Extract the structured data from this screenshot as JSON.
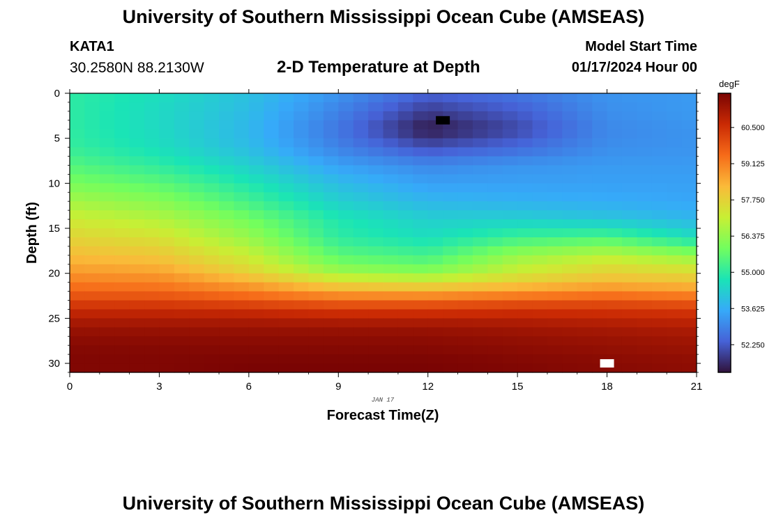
{
  "page": {
    "title": "University of Southern Mississippi Ocean Cube (AMSEAS)",
    "title_repeat": "University of Southern Mississippi Ocean Cube (AMSEAS)",
    "station_id": "KATA1",
    "coordinates": "30.2580N  88.2130W",
    "model_start_label": "Model Start Time",
    "model_start_value": "01/17/2024 Hour 00"
  },
  "chart_data": {
    "type": "heatmap",
    "title": "2-D Temperature at Depth",
    "xlabel": "Forecast Time(Z)",
    "ylabel": "Depth (ft)",
    "date_label": "JAN 17",
    "xlim": [
      0,
      21
    ],
    "ylim": [
      0,
      31
    ],
    "y_inverted": true,
    "x_ticks": [
      0,
      3,
      6,
      9,
      12,
      15,
      18,
      21
    ],
    "y_ticks": [
      0,
      5,
      10,
      15,
      20,
      25,
      30
    ],
    "colorbar": {
      "label": "degF",
      "min": 51.2,
      "max": 61.8,
      "ticks": [
        "60.500",
        "59.125",
        "57.750",
        "56.375",
        "55.000",
        "53.625",
        "52.250"
      ],
      "colormap": [
        "#30123b",
        "#4662d7",
        "#36aaf9",
        "#1ae4b6",
        "#72fe5e",
        "#c8ef34",
        "#faba39",
        "#f66b19",
        "#ca2a04",
        "#7a0403"
      ]
    },
    "columns_x": [
      0,
      3,
      6,
      9,
      12,
      15,
      18,
      21
    ],
    "rows_depth_ft": [
      0,
      2,
      4,
      6,
      8,
      10,
      12,
      14,
      16,
      18,
      19,
      20,
      21,
      22,
      23,
      24,
      25,
      26,
      27,
      28,
      29,
      30,
      31
    ],
    "values_degF": [
      [
        55.0,
        54.6,
        54.0,
        53.2,
        52.4,
        52.7,
        53.2,
        53.3
      ],
      [
        55.0,
        54.5,
        53.9,
        52.9,
        51.8,
        52.3,
        53.1,
        53.3
      ],
      [
        55.0,
        54.5,
        53.8,
        52.7,
        51.3,
        52.0,
        53.0,
        53.2
      ],
      [
        55.1,
        54.6,
        53.9,
        52.9,
        52.1,
        52.5,
        53.1,
        53.2
      ],
      [
        55.5,
        55.0,
        54.3,
        53.4,
        53.0,
        53.2,
        53.3,
        53.3
      ],
      [
        56.0,
        55.6,
        54.8,
        53.9,
        53.4,
        53.4,
        53.4,
        53.4
      ],
      [
        56.6,
        56.2,
        55.3,
        54.3,
        53.8,
        53.7,
        53.6,
        53.5
      ],
      [
        57.2,
        56.8,
        55.9,
        54.8,
        54.3,
        54.3,
        54.1,
        53.8
      ],
      [
        57.7,
        57.4,
        56.4,
        55.0,
        54.6,
        55.2,
        55.4,
        54.6
      ],
      [
        58.2,
        58.0,
        57.1,
        55.6,
        55.3,
        56.4,
        56.9,
        56.3
      ],
      [
        58.5,
        58.3,
        57.4,
        56.0,
        55.7,
        56.8,
        57.4,
        57.0
      ],
      [
        58.8,
        58.7,
        57.8,
        56.6,
        56.3,
        57.2,
        57.8,
        57.6
      ],
      [
        59.2,
        59.1,
        58.5,
        57.6,
        57.4,
        57.9,
        58.3,
        58.1
      ],
      [
        59.6,
        59.5,
        59.1,
        58.5,
        58.4,
        58.7,
        59.0,
        58.8
      ],
      [
        60.1,
        60.1,
        59.8,
        59.5,
        59.5,
        59.7,
        59.8,
        59.6
      ],
      [
        60.6,
        60.6,
        60.5,
        60.3,
        60.3,
        60.4,
        60.4,
        60.3
      ],
      [
        61.0,
        61.0,
        61.0,
        60.9,
        60.9,
        60.9,
        60.8,
        60.7
      ],
      [
        61.3,
        61.3,
        61.3,
        61.3,
        61.3,
        61.2,
        61.1,
        61.0
      ],
      [
        61.5,
        61.5,
        61.5,
        61.5,
        61.5,
        61.4,
        61.3,
        61.2
      ],
      [
        61.6,
        61.6,
        61.6,
        61.6,
        61.6,
        61.5,
        61.4,
        61.3
      ],
      [
        61.7,
        61.7,
        61.7,
        61.7,
        61.7,
        61.6,
        61.5,
        61.4
      ],
      [
        61.7,
        61.7,
        61.8,
        61.8,
        61.8,
        61.7,
        61.6,
        61.5
      ],
      [
        61.7,
        61.7,
        61.8,
        61.8,
        61.8,
        61.7,
        61.6,
        61.5
      ]
    ],
    "markers": [
      {
        "name": "minimum-temperature-marker",
        "color": "#000000",
        "x": 12.5,
        "depth_ft": 3
      },
      {
        "name": "maximum-temperature-marker",
        "color": "#ffffff",
        "x": 18,
        "depth_ft": 30
      }
    ]
  }
}
